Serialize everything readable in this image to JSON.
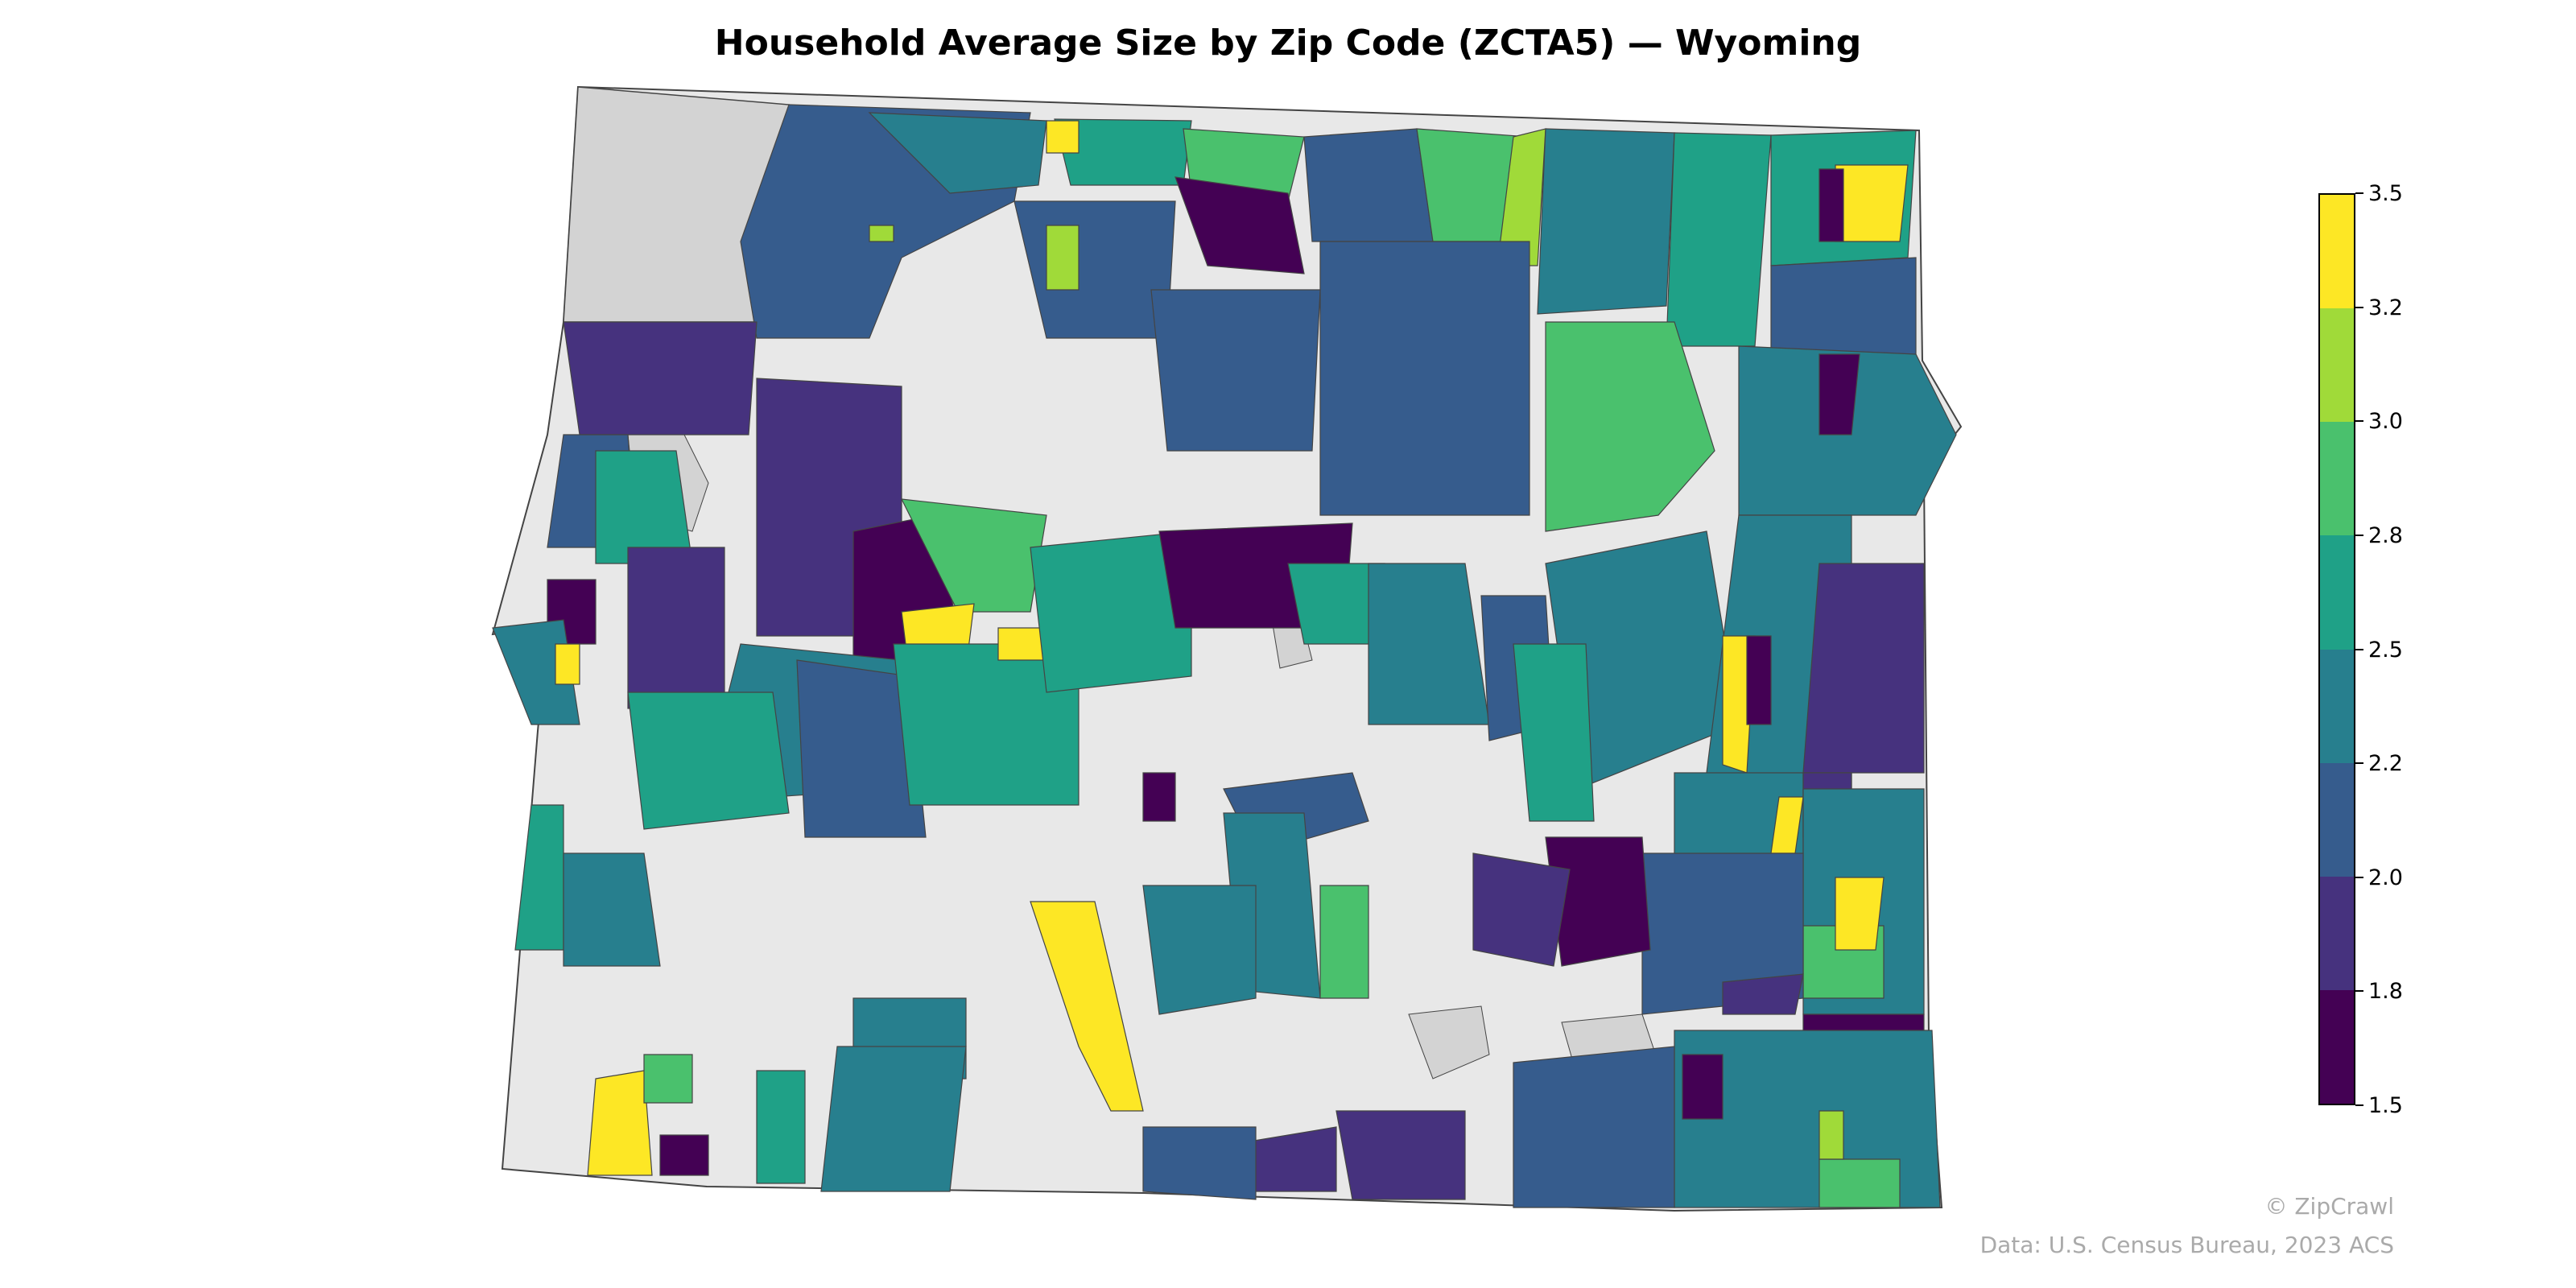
{
  "title": "Household Average Size by Zip Code (ZCTA5) — Wyoming",
  "colorbar": {
    "ticks": [
      "1.5",
      "1.8",
      "2.0",
      "2.2",
      "2.5",
      "2.8",
      "3.0",
      "3.2",
      "3.5"
    ],
    "colors": [
      "#440154",
      "#46327e",
      "#365c8d",
      "#277f8e",
      "#1fa187",
      "#4ac16d",
      "#a0da39",
      "#fde725"
    ]
  },
  "colors": {
    "no_data": "#d3d3d3",
    "outside": "#e8e8e8",
    "border": "#444444"
  },
  "credit": "© ZipCrawl",
  "source": "Data: U.S. Census Bureau, 2023 ACS"
}
